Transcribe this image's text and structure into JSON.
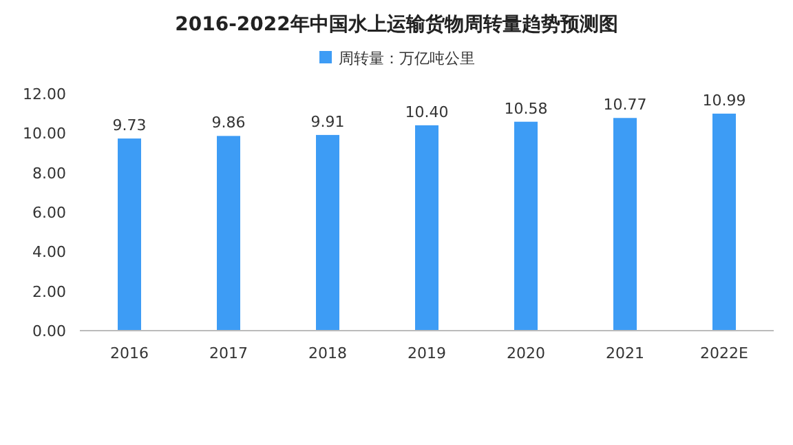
{
  "chart_data": {
    "type": "bar",
    "title": "2016-2022年中国水上运输货物周转量趋势预测图",
    "categories": [
      "2016",
      "2017",
      "2018",
      "2019",
      "2020",
      "2021",
      "2022E"
    ],
    "series": [
      {
        "name": "周转量：万亿吨公里",
        "color": "#3d9cf5",
        "values": [
          9.73,
          9.86,
          9.91,
          10.4,
          10.58,
          10.77,
          10.99
        ],
        "value_labels": [
          "9.73",
          "9.86",
          "9.91",
          "10.40",
          "10.58",
          "10.77",
          "10.99"
        ]
      }
    ],
    "ylim": [
      0,
      12
    ],
    "yticks": [
      {
        "value": 0,
        "label": "0.00"
      },
      {
        "value": 2,
        "label": "2.00"
      },
      {
        "value": 4,
        "label": "4.00"
      },
      {
        "value": 6,
        "label": "6.00"
      },
      {
        "value": 8,
        "label": "8.00"
      },
      {
        "value": 10,
        "label": "10.00"
      },
      {
        "value": 12,
        "label": "12.00"
      }
    ],
    "legend": "top",
    "grid": false
  }
}
